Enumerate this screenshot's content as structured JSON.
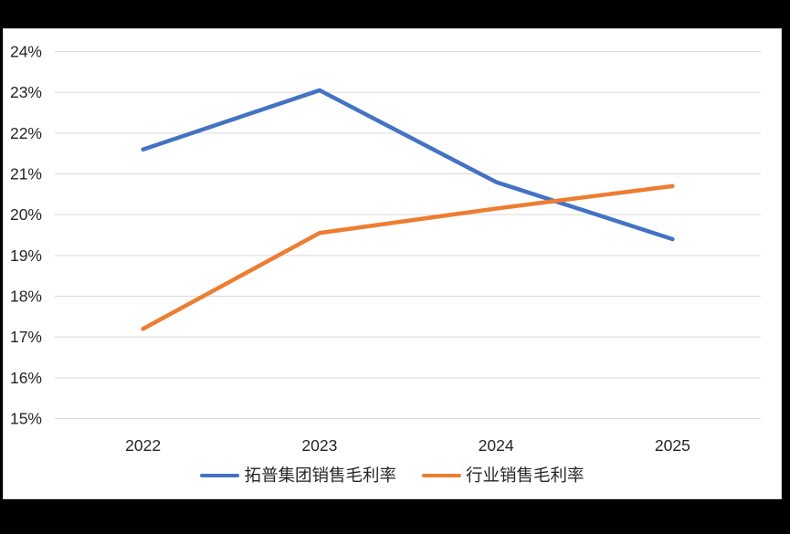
{
  "page": {
    "background_color": "#000000",
    "card_background": "#ffffff",
    "card_border_color": "#d6d6d6",
    "text_color": "#262626"
  },
  "chart_data": {
    "type": "line",
    "title": "",
    "xlabel": "",
    "ylabel": "",
    "categories": [
      "2022",
      "2023",
      "2024",
      "2025"
    ],
    "series": [
      {
        "name": "拓普集团销售毛利率",
        "color": "#4472C4",
        "values": [
          21.6,
          23.05,
          20.8,
          19.4
        ]
      },
      {
        "name": "行业销售毛利率",
        "color": "#ED7D31",
        "values": [
          17.2,
          19.55,
          20.15,
          20.7
        ]
      }
    ],
    "ylim": [
      15,
      24
    ],
    "y_tick_step": 1,
    "y_tick_labels": [
      "15%",
      "16%",
      "17%",
      "18%",
      "19%",
      "20%",
      "21%",
      "22%",
      "23%",
      "24%"
    ],
    "grid": "horizontal",
    "gridline_color": "#D9D9D9",
    "line_width": 4.5,
    "legend_position": "bottom"
  }
}
